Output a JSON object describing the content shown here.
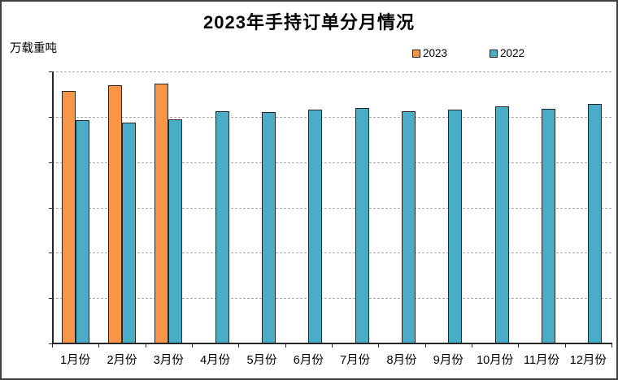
{
  "page": {
    "title": "2023年手持订单分月情况",
    "unit_label": "万载重吨"
  },
  "legend": {
    "items": [
      {
        "label": "2023",
        "color": "#F79646"
      },
      {
        "label": "2022",
        "color": "#4BACC6"
      }
    ]
  },
  "chart_data": {
    "type": "bar",
    "title": "2023年手持订单分月情况",
    "xlabel": "",
    "ylabel": "万载重吨",
    "categories": [
      "1月份",
      "2月份",
      "3月份",
      "4月份",
      "5月份",
      "6月份",
      "7月份",
      "8月份",
      "9月份",
      "10月份",
      "11月份",
      "12月份"
    ],
    "series": [
      {
        "name": "2023",
        "color": "#F79646",
        "values": [
          11150,
          11400,
          11450,
          null,
          null,
          null,
          null,
          null,
          null,
          null,
          null,
          null
        ]
      },
      {
        "name": "2022",
        "color": "#4BACC6",
        "values": [
          9850,
          9750,
          9900,
          10250,
          10200,
          10300,
          10400,
          10250,
          10300,
          10450,
          10350,
          10550
        ]
      }
    ],
    "ylim": [
      0,
      12000
    ],
    "yticks": [
      0,
      2000,
      4000,
      6000,
      8000,
      10000,
      12000
    ],
    "grid": "horizontal-dashed",
    "legend_position": "top-right",
    "bar_outline_color": "#262626"
  },
  "colors": {
    "background": "#FFFFFF",
    "frame_border": "#3F3F3F",
    "gridline": "#A6A6A6",
    "axis": "#262626",
    "text": "#000000"
  }
}
